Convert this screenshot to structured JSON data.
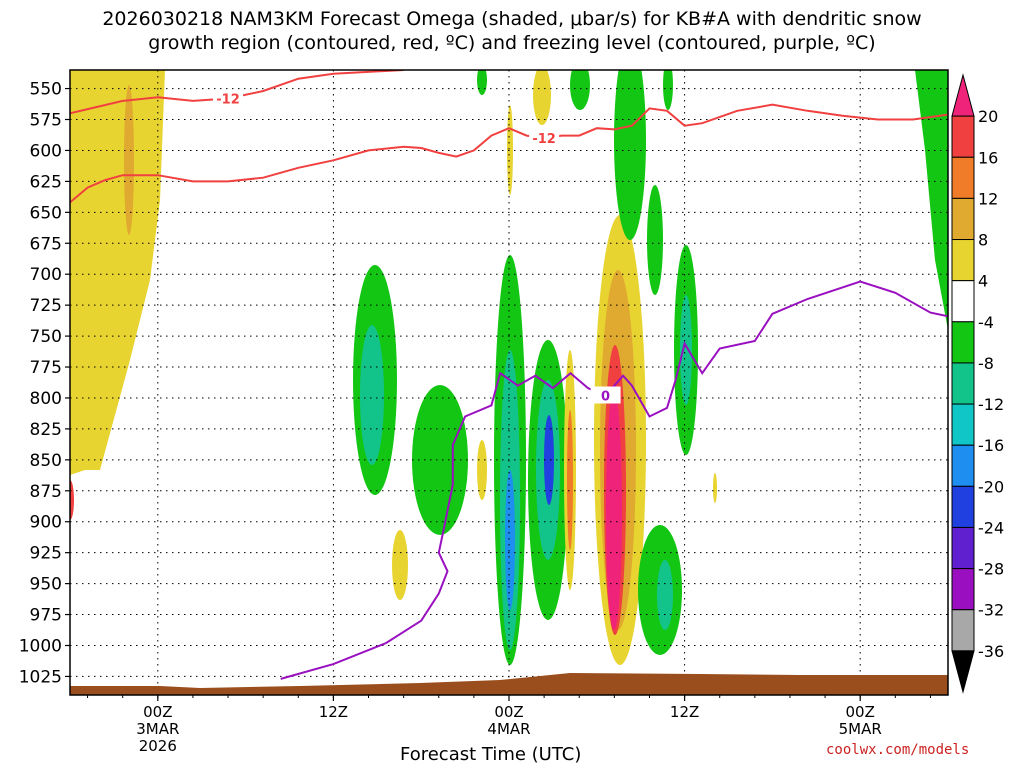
{
  "chart_data": {
    "type": "heatmap",
    "title_line1": "2026030218 NAM3KM Forecast Omega (shaded, μbar/s) for KB#A with dendritic snow",
    "title_line2": "growth region (contoured, red, ºC) and freezing level (contoured, purple, ºC)",
    "xlabel": "Forecast Time (UTC)",
    "ylabel": "",
    "credit": "coolwx.com/models",
    "y_scale": "pressure (inverted, hPa)",
    "ylim": [
      1040,
      535
    ],
    "y_ticks": [
      550,
      575,
      600,
      625,
      650,
      675,
      700,
      725,
      750,
      775,
      800,
      825,
      850,
      875,
      900,
      925,
      950,
      975,
      1000,
      1025
    ],
    "x_hours_range": [
      -5,
      45
    ],
    "x_ticks": [
      {
        "hour": 0,
        "label1": "00Z",
        "label2": "3MAR",
        "label3": "2026"
      },
      {
        "hour": 10,
        "label1": "12Z",
        "label2": "",
        "label3": ""
      },
      {
        "hour": 20,
        "label1": "00Z",
        "label2": "4MAR",
        "label3": ""
      },
      {
        "hour": 30,
        "label1": "12Z",
        "label2": "",
        "label3": ""
      },
      {
        "hour": 40,
        "label1": "00Z",
        "label2": "5MAR",
        "label3": ""
      }
    ],
    "colorbar": {
      "levels": [
        20,
        16,
        12,
        8,
        4,
        -4,
        -8,
        -12,
        -16,
        -20,
        -24,
        -28,
        -32,
        -36
      ],
      "colors": [
        "#f0237a",
        "#f04040",
        "#f07b28",
        "#e0a930",
        "#e8d430",
        "#ffffff",
        "#13c613",
        "#12c48a",
        "#10c6c6",
        "#1e8ef0",
        "#2040e0",
        "#6020d0",
        "#9a10c0",
        "#a8a8a8",
        "#000000"
      ]
    },
    "series": [
      {
        "name": "-12",
        "color": "#f04040",
        "points": [
          [
            -5,
            570
          ],
          [
            -2,
            560
          ],
          [
            0,
            557
          ],
          [
            2,
            560
          ],
          [
            4,
            558
          ],
          [
            6,
            552
          ],
          [
            8,
            542
          ],
          [
            10,
            538
          ],
          [
            14,
            535
          ]
        ]
      },
      {
        "name": "-12",
        "color": "#f04040",
        "points": [
          [
            -5,
            642
          ],
          [
            -4,
            630
          ],
          [
            -3,
            624
          ],
          [
            -2,
            620
          ],
          [
            0,
            620
          ],
          [
            2,
            625
          ],
          [
            4,
            625
          ],
          [
            6,
            622
          ],
          [
            8,
            614
          ],
          [
            10,
            608
          ],
          [
            12,
            600
          ],
          [
            14,
            597
          ],
          [
            15,
            598
          ],
          [
            16,
            602
          ],
          [
            17,
            605
          ],
          [
            18,
            600
          ],
          [
            19,
            588
          ],
          [
            20,
            582
          ],
          [
            21,
            588
          ],
          [
            22,
            590
          ],
          [
            23,
            588
          ],
          [
            24,
            588
          ],
          [
            25,
            582
          ],
          [
            26,
            583
          ],
          [
            27,
            580
          ],
          [
            28,
            566
          ],
          [
            29,
            568
          ],
          [
            30,
            580
          ],
          [
            31,
            578
          ],
          [
            33,
            568
          ],
          [
            35,
            563
          ],
          [
            37,
            568
          ],
          [
            39,
            572
          ],
          [
            41,
            575
          ],
          [
            43,
            575
          ],
          [
            45,
            571
          ]
        ]
      },
      {
        "name": "0",
        "color": "#9a10c0",
        "points": [
          [
            7,
            1027
          ],
          [
            10,
            1015
          ],
          [
            13,
            998
          ],
          [
            15,
            980
          ],
          [
            16,
            958
          ],
          [
            16.5,
            940
          ],
          [
            16,
            925
          ],
          [
            16.3,
            905
          ],
          [
            16.8,
            870
          ],
          [
            16.8,
            838
          ],
          [
            17.5,
            815
          ],
          [
            19,
            806
          ],
          [
            19.5,
            780
          ],
          [
            20.5,
            790
          ],
          [
            21.5,
            782
          ],
          [
            22.5,
            792
          ],
          [
            23.5,
            780
          ],
          [
            24.5,
            792
          ],
          [
            25.5,
            798
          ],
          [
            26.5,
            782
          ],
          [
            27,
            790
          ],
          [
            28,
            815
          ],
          [
            29,
            808
          ],
          [
            29.5,
            785
          ],
          [
            30,
            756
          ],
          [
            31,
            780
          ],
          [
            32,
            760
          ],
          [
            34,
            754
          ],
          [
            35,
            732
          ],
          [
            37,
            720
          ],
          [
            40,
            706
          ],
          [
            42,
            715
          ],
          [
            44,
            731
          ],
          [
            45,
            734
          ]
        ]
      }
    ]
  }
}
